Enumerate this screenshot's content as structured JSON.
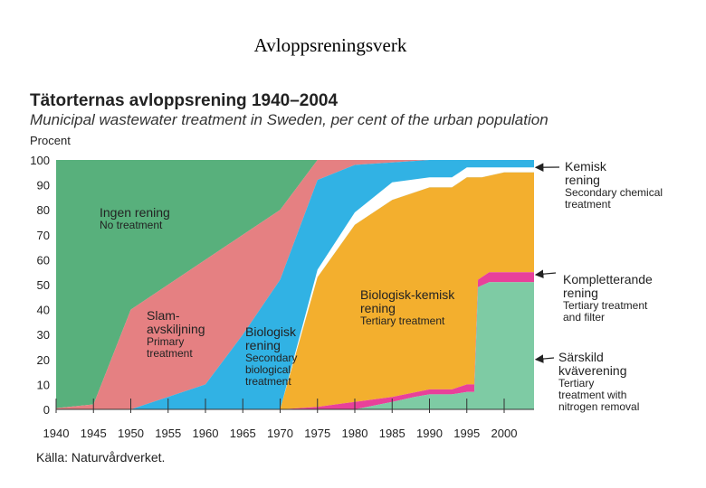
{
  "slide_title": "Avloppsreningsverk",
  "source": "Källa: Naturvårdverket.",
  "chart_data": {
    "type": "area",
    "title": "Tätorternas avloppsrening 1940–2004",
    "subtitle": "Municipal wastewater treatment in Sweden, per cent of the urban population",
    "ylabel": "Procent",
    "xlabel": "",
    "ylim": [
      0,
      100
    ],
    "xlim": [
      1940,
      2004
    ],
    "x_ticks": [
      "1940",
      "1945",
      "1950",
      "1955",
      "1960",
      "1965",
      "1970",
      "1975",
      "1980",
      "1985",
      "1990",
      "1995",
      "2000"
    ],
    "y_ticks": [
      "0",
      "10",
      "20",
      "30",
      "40",
      "50",
      "60",
      "70",
      "80",
      "90",
      "100"
    ],
    "legend": "none",
    "layers": [
      {
        "name": "Ingen rening / No treatment",
        "color": "#58b07c",
        "top": [
          [
            1940,
            100
          ],
          [
            2004,
            100
          ]
        ],
        "bottom": [
          [
            1940,
            0.5
          ],
          [
            1945,
            2
          ],
          [
            1950,
            40
          ],
          [
            1960,
            60
          ],
          [
            1970,
            80
          ],
          [
            1975,
            100
          ],
          [
            2004,
            100
          ]
        ]
      },
      {
        "name": "Slamavskiljning / Primary treatment",
        "color": "#e58082",
        "top": [
          [
            1940,
            0.5
          ],
          [
            1945,
            2
          ],
          [
            1950,
            40
          ],
          [
            1960,
            60
          ],
          [
            1970,
            80
          ],
          [
            1975,
            100
          ],
          [
            2004,
            100
          ]
        ],
        "bottom": [
          [
            1940,
            0
          ],
          [
            1950,
            0
          ],
          [
            1960,
            10
          ],
          [
            1965,
            30
          ],
          [
            1970,
            52
          ],
          [
            1975,
            92
          ],
          [
            1980,
            98
          ],
          [
            1985,
            99
          ],
          [
            1990,
            100
          ],
          [
            2004,
            100
          ]
        ]
      },
      {
        "name": "Biologisk rening / Secondary biological treatment",
        "color": "#31b2e4",
        "top": [
          [
            1940,
            0
          ],
          [
            1950,
            0
          ],
          [
            1960,
            10
          ],
          [
            1965,
            30
          ],
          [
            1970,
            52
          ],
          [
            1975,
            92
          ],
          [
            1980,
            98
          ],
          [
            1985,
            99
          ],
          [
            1990,
            100
          ],
          [
            2004,
            100
          ]
        ],
        "bottom": [
          [
            1940,
            0
          ],
          [
            1970,
            0
          ],
          [
            1975,
            53
          ],
          [
            1980,
            74
          ],
          [
            1985,
            84
          ],
          [
            1990,
            89
          ],
          [
            1993,
            89
          ],
          [
            1995,
            93
          ],
          [
            1997,
            93
          ],
          [
            2000,
            95
          ],
          [
            2004,
            95
          ]
        ]
      },
      {
        "name": "Kemisk rening / Secondary chemical treatment",
        "color": "#ffffff",
        "top": [
          [
            1940,
            0
          ],
          [
            1970,
            0
          ],
          [
            1975,
            56
          ],
          [
            1980,
            79
          ],
          [
            1985,
            91
          ],
          [
            1990,
            93
          ],
          [
            1993,
            93
          ],
          [
            1995,
            97
          ],
          [
            2004,
            97
          ]
        ],
        "bottom": [
          [
            1940,
            0
          ],
          [
            1970,
            0
          ],
          [
            1975,
            53
          ],
          [
            1980,
            74
          ],
          [
            1985,
            84
          ],
          [
            1990,
            89
          ],
          [
            1993,
            89
          ],
          [
            1995,
            93
          ],
          [
            1997,
            93
          ],
          [
            2000,
            95
          ],
          [
            2004,
            95
          ]
        ]
      },
      {
        "name": "Biologisk-kemisk rening / Tertiary treatment",
        "color": "#f3af2e",
        "top": [
          [
            1940,
            0
          ],
          [
            1970,
            0
          ],
          [
            1975,
            53
          ],
          [
            1980,
            74
          ],
          [
            1985,
            84
          ],
          [
            1990,
            89
          ],
          [
            1993,
            89
          ],
          [
            1995,
            93
          ],
          [
            1997,
            93
          ],
          [
            2000,
            95
          ],
          [
            2004,
            95
          ]
        ],
        "bottom": [
          [
            1940,
            0
          ],
          [
            1970,
            0
          ],
          [
            1975,
            1
          ],
          [
            1980,
            3
          ],
          [
            1985,
            5
          ],
          [
            1990,
            8
          ],
          [
            1993,
            8
          ],
          [
            1995,
            10
          ],
          [
            1996,
            10
          ],
          [
            1996.5,
            52
          ],
          [
            1998,
            55
          ],
          [
            2004,
            55
          ]
        ]
      },
      {
        "name": "Kompletterande rening / Tertiary treatment and filter",
        "color": "#e8409a",
        "top": [
          [
            1940,
            0
          ],
          [
            1970,
            0
          ],
          [
            1975,
            1
          ],
          [
            1980,
            3
          ],
          [
            1985,
            5
          ],
          [
            1990,
            8
          ],
          [
            1993,
            8
          ],
          [
            1995,
            10
          ],
          [
            1996,
            10
          ],
          [
            1996.5,
            52
          ],
          [
            1998,
            55
          ],
          [
            2004,
            55
          ]
        ],
        "bottom": [
          [
            1940,
            0
          ],
          [
            1980,
            0
          ],
          [
            1985,
            3
          ],
          [
            1988,
            5
          ],
          [
            1990,
            6
          ],
          [
            1993,
            6
          ],
          [
            1995,
            7
          ],
          [
            1996,
            7
          ],
          [
            1996.5,
            49
          ],
          [
            1998,
            51
          ],
          [
            2004,
            51
          ]
        ]
      },
      {
        "name": "Särskild kväverening / Tertiary treatment with nitrogen removal",
        "color": "#7ecba4",
        "top": [
          [
            1940,
            0
          ],
          [
            1980,
            0
          ],
          [
            1985,
            3
          ],
          [
            1988,
            5
          ],
          [
            1990,
            6
          ],
          [
            1993,
            6
          ],
          [
            1995,
            7
          ],
          [
            1996,
            7
          ],
          [
            1996.5,
            49
          ],
          [
            1998,
            51
          ],
          [
            2004,
            51
          ]
        ],
        "bottom": [
          [
            1940,
            0
          ],
          [
            2004,
            0
          ]
        ]
      }
    ],
    "annotations": [
      {
        "main": [
          "Ingen rening"
        ],
        "sub": [
          "No treatment"
        ]
      },
      {
        "main": [
          "Slam-",
          "avskiljning"
        ],
        "sub": [
          "Primary",
          "treatment"
        ]
      },
      {
        "main": [
          "Biologisk",
          "rening"
        ],
        "sub": [
          "Secondary",
          "biological",
          "treatment"
        ]
      },
      {
        "main": [
          "Biologisk-kemisk",
          "rening"
        ],
        "sub": [
          "Tertiary treatment"
        ]
      },
      {
        "main": [
          "Kemisk",
          "rening"
        ],
        "sub": [
          "Secondary chemical",
          "treatment"
        ]
      },
      {
        "main": [
          "Kompletterande",
          "rening"
        ],
        "sub": [
          "Tertiary treatment",
          "and filter"
        ]
      },
      {
        "main": [
          "Särskild",
          "kväverening"
        ],
        "sub": [
          "Tertiary",
          "treatment with",
          "nitrogen removal"
        ]
      }
    ]
  }
}
